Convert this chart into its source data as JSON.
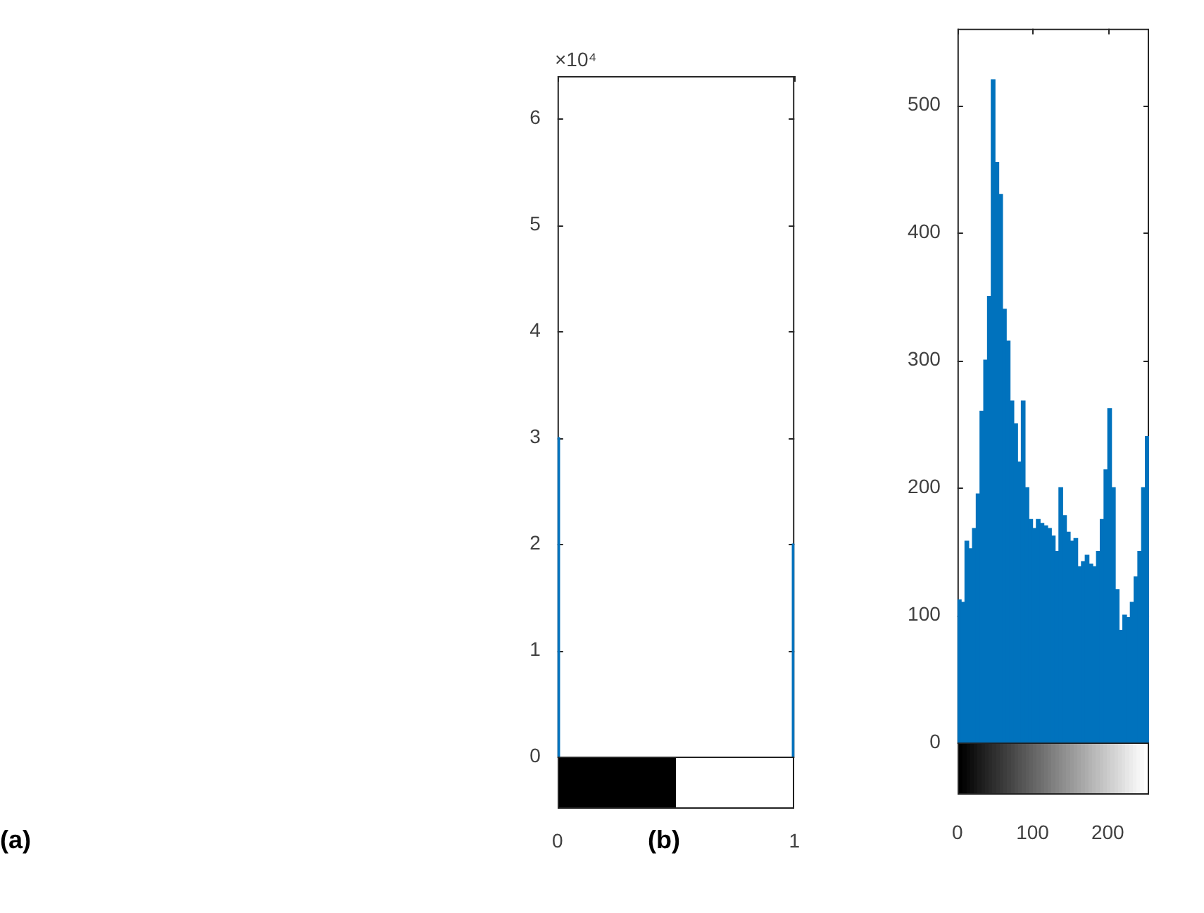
{
  "chart_data": [
    {
      "type": "bar",
      "x": [
        0,
        1
      ],
      "values": [
        3,
        2
      ],
      "color": "#0072bd",
      "xlim": [
        0,
        1
      ],
      "xticks": [
        0,
        1
      ],
      "ylim": [
        0,
        6.4
      ],
      "yticks": [
        0,
        1,
        2,
        3,
        4,
        5,
        6
      ],
      "grid": false,
      "legend": false,
      "annotations": [
        "×10⁴",
        "(a)",
        "(b)"
      ]
    },
    {
      "type": "histogram",
      "bins": [
        0,
        5,
        10,
        15,
        20,
        25,
        30,
        35,
        40,
        45,
        50,
        55,
        60,
        65,
        70,
        75,
        80,
        85,
        90,
        95,
        100,
        105,
        110,
        115,
        120,
        125,
        130,
        135,
        140,
        145,
        150,
        155,
        160,
        165,
        170,
        175,
        180,
        185,
        190,
        195,
        200,
        205,
        210,
        215,
        220,
        225,
        230,
        235,
        240,
        245,
        250,
        255
      ],
      "values": [
        112,
        110,
        158,
        152,
        168,
        195,
        260,
        300,
        350,
        520,
        455,
        430,
        340,
        315,
        268,
        250,
        220,
        268,
        200,
        175,
        168,
        175,
        172,
        170,
        168,
        162,
        150,
        200,
        178,
        165,
        158,
        160,
        138,
        142,
        147,
        140,
        138,
        150,
        175,
        214,
        262,
        200,
        120,
        88,
        100,
        98,
        110,
        130,
        150,
        200,
        240
      ],
      "color": "#0072bd",
      "xlim": [
        0,
        255
      ],
      "xticks": [
        0,
        100,
        200
      ],
      "ylim": [
        0,
        560
      ],
      "yticks": [
        0,
        100,
        200,
        300,
        400,
        500
      ],
      "grid": false,
      "legend": false
    }
  ]
}
